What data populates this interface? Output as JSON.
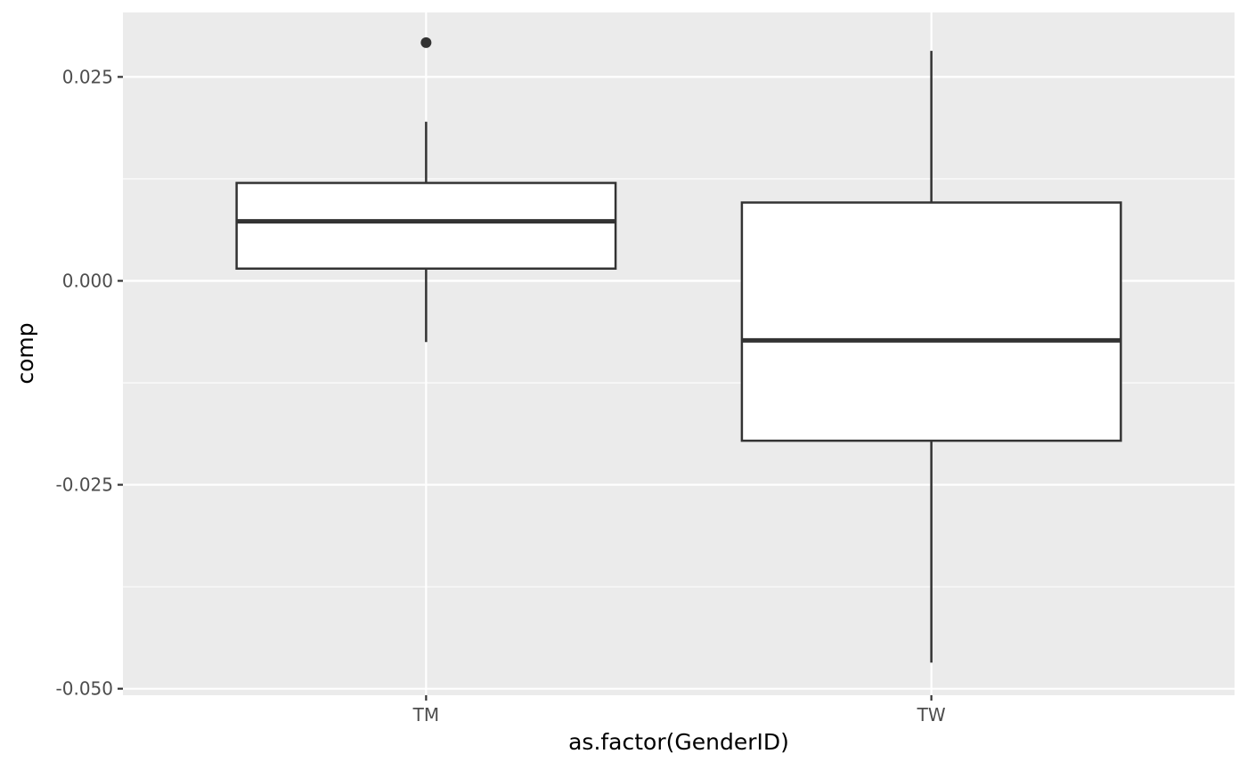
{
  "chart_data": {
    "type": "boxplot",
    "xlabel": "as.factor(GenderID)",
    "ylabel": "comp",
    "ylim": [
      -0.0508,
      0.0329
    ],
    "y_ticks": [
      -0.05,
      -0.025,
      0.0,
      0.025
    ],
    "y_tick_labels": [
      "-0.050",
      "-0.025",
      "0.000",
      "0.025"
    ],
    "categories": [
      "TM",
      "TW"
    ],
    "boxes": [
      {
        "category": "TM",
        "whisker_low": -0.0075,
        "q1": 0.0015,
        "median": 0.0073,
        "q3": 0.012,
        "whisker_high": 0.0195,
        "outliers": [
          0.0292
        ]
      },
      {
        "category": "TW",
        "whisker_low": -0.0468,
        "q1": -0.0196,
        "median": -0.0073,
        "q3": 0.0096,
        "whisker_high": 0.0282,
        "outliers": []
      }
    ],
    "grid": true,
    "colors": {
      "panel": "#ebebeb",
      "grid": "#ffffff",
      "box_fill": "#ffffff",
      "box_line": "#333333",
      "tick_text": "#4d4d4d",
      "title_text": "#000000"
    }
  }
}
